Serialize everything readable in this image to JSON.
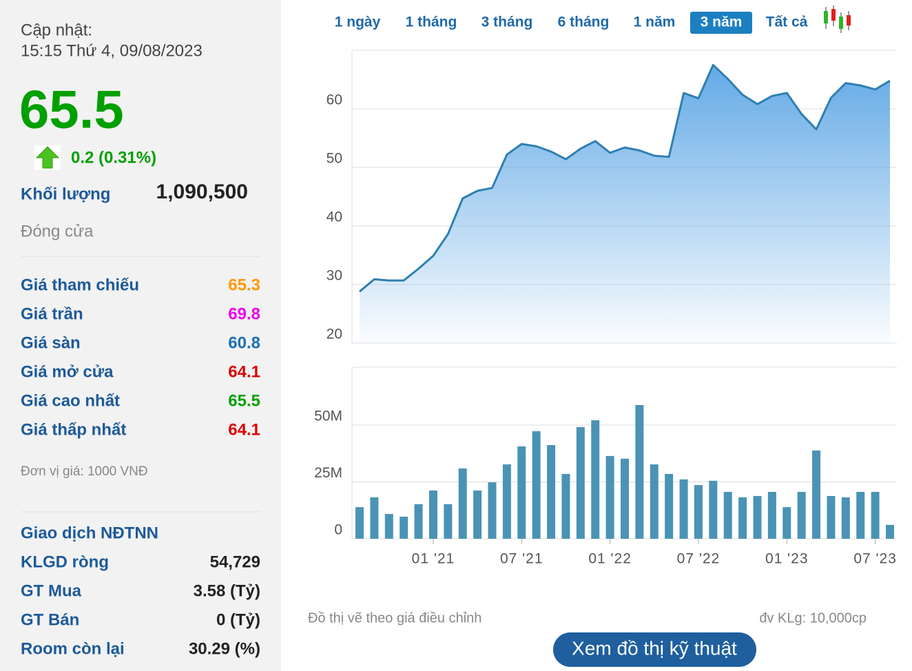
{
  "sidebar": {
    "update_label": "Cập nhật:",
    "update_time": "15:15 Thứ 4, 09/08/2023",
    "price": "65.5",
    "change": "0.2 (0.31%)",
    "volume_label": "Khối lượng",
    "volume": "1,090,500",
    "status": "Đóng cửa",
    "price_rows": [
      {
        "label": "Giá tham chiếu",
        "value": "65.3",
        "color": "#ff9900"
      },
      {
        "label": "Giá trần",
        "value": "69.8",
        "color": "#ee00ee"
      },
      {
        "label": "Giá sàn",
        "value": "60.8",
        "color": "#1c6fb5"
      },
      {
        "label": "Giá mở cửa",
        "value": "64.1",
        "color": "#dd0000"
      },
      {
        "label": "Giá cao nhất",
        "value": "65.5",
        "color": "#00a000"
      },
      {
        "label": "Giá thấp nhất",
        "value": "64.1",
        "color": "#dd0000"
      }
    ],
    "unit_note": "Đơn vị giá: 1000 VNĐ",
    "foreign_title": "Giao dịch NĐTNN",
    "foreign_rows": [
      {
        "label": "KLGD ròng",
        "value": "54,729"
      },
      {
        "label": "GT Mua",
        "value": "3.58 (Tỷ)"
      },
      {
        "label": "GT Bán",
        "value": "0 (Tỷ)"
      },
      {
        "label": "Room còn lại",
        "value": "30.29 (%)"
      }
    ]
  },
  "tabs": [
    "1 ngày",
    "1 tháng",
    "3 tháng",
    "6 tháng",
    "1 năm",
    "3 năm",
    "Tất cả"
  ],
  "active_tab": 5,
  "chart_data": [
    {
      "type": "area",
      "color": "#2e7fb0",
      "values": [
        28.8,
        30.9,
        30.7,
        30.7,
        32.7,
        34.9,
        38.6,
        44.7,
        46.0,
        46.5,
        52.2,
        54.0,
        53.6,
        52.7,
        51.4,
        53.2,
        54.5,
        52.5,
        53.4,
        52.9,
        52.0,
        51.8,
        62.7,
        61.8,
        67.5,
        65.1,
        62.4,
        60.8,
        62.2,
        62.7,
        59.1,
        56.5,
        61.9,
        64.4,
        64.0,
        63.3,
        64.8
      ],
      "ylim": [
        20,
        70
      ],
      "yticks": [
        20,
        30,
        40,
        50,
        60
      ],
      "grid": true
    },
    {
      "type": "bar",
      "color": "#4a93b5",
      "categories": [
        null,
        null,
        null,
        null,
        null,
        "01 '21",
        null,
        null,
        null,
        null,
        null,
        "07 '21",
        null,
        null,
        null,
        null,
        null,
        "01 '22",
        null,
        null,
        null,
        null,
        null,
        "07 '22",
        null,
        null,
        null,
        null,
        null,
        "01 '23",
        null,
        null,
        null,
        null,
        null,
        "07 '23",
        null
      ],
      "values": [
        13.9,
        18.2,
        10.9,
        9.7,
        15.2,
        21.2,
        15.2,
        30.9,
        21.2,
        24.8,
        32.7,
        40.6,
        47.3,
        41.2,
        28.5,
        49.1,
        52.1,
        36.4,
        35.2,
        58.8,
        32.7,
        28.5,
        26.1,
        23.6,
        25.5,
        20.6,
        18.2,
        18.8,
        20.6,
        13.9,
        20.6,
        38.8,
        18.8,
        18.2,
        20.6,
        20.6,
        6.1
      ],
      "ylim": [
        0,
        75
      ],
      "yticks": [
        0,
        {
          "value": 25,
          "label": "25M"
        },
        {
          "value": 50,
          "label": "50M"
        }
      ],
      "grid": true
    }
  ],
  "notes": {
    "left": "Đồ thị vẽ theo giá điều chỉnh",
    "right": "đv KLg: 10,000cp"
  },
  "button": "Xem đồ thị kỹ thuật"
}
